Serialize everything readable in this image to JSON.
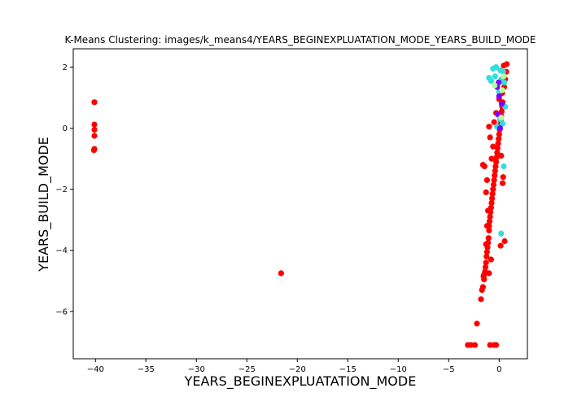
{
  "chart_data": {
    "type": "scatter",
    "title": "K-Means Clustering: images/k_means4/YEARS_BEGINEXPLUATATION_MODE_YEARS_BUILD_MODE",
    "xlabel": "YEARS_BEGINEXPLUATATION_MODE",
    "ylabel": "YEARS_BUILD_MODE",
    "xlim": [
      -42.2,
      2.8
    ],
    "ylim": [
      -7.55,
      2.6
    ],
    "xticks": [
      -40,
      -35,
      -30,
      -25,
      -20,
      -15,
      -10,
      -5,
      0
    ],
    "yticks": [
      2,
      0,
      -2,
      -4,
      -6
    ],
    "grid": false,
    "legend": "none",
    "series": [
      {
        "color": "#ff0000",
        "points": [
          [
            -40.1,
            0.85
          ],
          [
            -40.1,
            0.12
          ],
          [
            -40.1,
            -0.05
          ],
          [
            -40.1,
            -0.25
          ],
          [
            -40.1,
            -0.68
          ],
          [
            -40.15,
            -0.72
          ],
          [
            -21.6,
            -4.75
          ],
          [
            -3.1,
            -7.1
          ],
          [
            -2.8,
            -7.1
          ],
          [
            -2.4,
            -7.1
          ],
          [
            -0.9,
            -7.1
          ],
          [
            -0.5,
            -7.1
          ],
          [
            -0.3,
            -7.1
          ],
          [
            -2.2,
            -6.4
          ],
          [
            -1.8,
            -5.6
          ],
          [
            -1.7,
            -5.3
          ],
          [
            -1.6,
            -5.2
          ],
          [
            -1.5,
            -4.95
          ],
          [
            -1.5,
            -4.8
          ],
          [
            -1.4,
            -4.7
          ],
          [
            -1.35,
            -4.55
          ],
          [
            -1.3,
            -4.4
          ],
          [
            -1.25,
            -4.2
          ],
          [
            -1.2,
            -4.05
          ],
          [
            -1.15,
            -3.9
          ],
          [
            -1.1,
            -3.75
          ],
          [
            -1.05,
            -3.6
          ],
          [
            -1.0,
            -3.35
          ],
          [
            -1.0,
            -3.2
          ],
          [
            -0.95,
            -3.05
          ],
          [
            -0.9,
            -2.9
          ],
          [
            -0.85,
            -2.75
          ],
          [
            -0.8,
            -2.6
          ],
          [
            -0.75,
            -2.45
          ],
          [
            -0.7,
            -2.3
          ],
          [
            -0.65,
            -2.15
          ],
          [
            -0.6,
            -2.0
          ],
          [
            -0.55,
            -1.85
          ],
          [
            -0.5,
            -1.7
          ],
          [
            -0.45,
            -1.55
          ],
          [
            -0.4,
            -1.4
          ],
          [
            -0.35,
            -1.25
          ],
          [
            -0.3,
            -1.1
          ],
          [
            -0.25,
            -0.95
          ],
          [
            -0.2,
            -0.8
          ],
          [
            -0.15,
            -0.65
          ],
          [
            -0.1,
            -0.5
          ],
          [
            -0.05,
            -0.35
          ],
          [
            0.0,
            -0.2
          ],
          [
            0.05,
            -0.05
          ],
          [
            0.1,
            0.1
          ],
          [
            0.15,
            0.25
          ],
          [
            0.2,
            0.4
          ],
          [
            0.25,
            0.55
          ],
          [
            0.3,
            0.7
          ],
          [
            0.35,
            0.85
          ],
          [
            -1.1,
            -2.7
          ],
          [
            -1.3,
            -2.1
          ],
          [
            -1.2,
            -1.7
          ],
          [
            -1.45,
            -1.25
          ],
          [
            -1.6,
            -1.2
          ],
          [
            -0.75,
            -1.0
          ],
          [
            -0.6,
            -0.6
          ],
          [
            -0.9,
            -0.3
          ],
          [
            -1.0,
            0.05
          ],
          [
            -0.5,
            0.2
          ],
          [
            -0.3,
            0.5
          ],
          [
            0.0,
            0.95
          ],
          [
            0.3,
            1.15
          ],
          [
            0.5,
            1.35
          ],
          [
            0.6,
            1.6
          ],
          [
            0.7,
            1.85
          ],
          [
            0.75,
            2.1
          ],
          [
            0.45,
            2.05
          ],
          [
            0.2,
            -0.9
          ],
          [
            0.35,
            -1.8
          ],
          [
            0.15,
            -3.85
          ],
          [
            0.55,
            -3.7
          ],
          [
            0.4,
            -1.6
          ],
          [
            -1.2,
            -3.2
          ],
          [
            -1.3,
            -3.8
          ],
          [
            -0.8,
            -4.3
          ],
          [
            -1.55,
            -4.85
          ],
          [
            -1.0,
            -4.75
          ]
        ]
      },
      {
        "color": "#33dddd",
        "points": [
          [
            -0.6,
            1.95
          ],
          [
            -0.3,
            2.0
          ],
          [
            0.1,
            1.9
          ],
          [
            0.4,
            1.85
          ],
          [
            -1.0,
            1.65
          ],
          [
            -0.8,
            1.55
          ],
          [
            -0.4,
            1.7
          ],
          [
            0.2,
            1.6
          ],
          [
            0.5,
            1.5
          ],
          [
            0.1,
            0.3
          ],
          [
            -0.2,
            0.05
          ],
          [
            0.35,
            0.15
          ],
          [
            0.45,
            -1.25
          ],
          [
            0.2,
            -3.45
          ],
          [
            0.6,
            0.7
          ],
          [
            0.0,
            1.2
          ]
        ]
      },
      {
        "color": "#7f00ff",
        "points": [
          [
            -0.2,
            1.35
          ],
          [
            0.0,
            1.05
          ],
          [
            -0.1,
            0.45
          ],
          [
            0.1,
            0.0
          ],
          [
            -0.05,
            1.5
          ],
          [
            0.25,
            0.8
          ]
        ]
      },
      {
        "color": "#b3ff99",
        "points": [
          [
            0.3,
            1.25
          ],
          [
            0.45,
            1.7
          ],
          [
            -0.45,
            1.4
          ],
          [
            0.2,
            0.35
          ]
        ]
      }
    ]
  }
}
